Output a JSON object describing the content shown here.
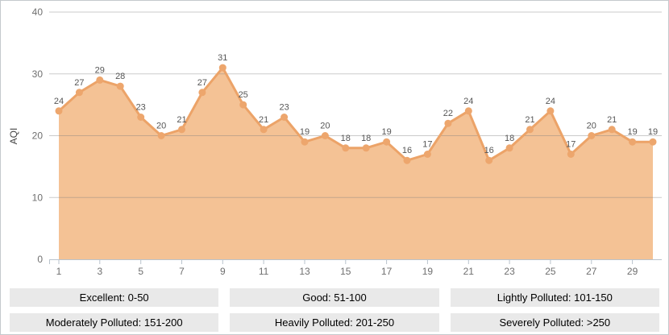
{
  "chart_data": {
    "type": "area",
    "title": "",
    "xlabel": "",
    "ylabel": "AQI",
    "x": [
      1,
      2,
      3,
      4,
      5,
      6,
      7,
      8,
      9,
      10,
      11,
      12,
      13,
      14,
      15,
      16,
      17,
      18,
      19,
      20,
      21,
      22,
      23,
      24,
      25,
      26,
      27,
      28,
      29,
      30
    ],
    "values": [
      24,
      27,
      29,
      28,
      23,
      20,
      21,
      27,
      31,
      25,
      21,
      23,
      19,
      20,
      18,
      18,
      19,
      16,
      17,
      22,
      24,
      16,
      18,
      21,
      24,
      17,
      20,
      21,
      19,
      19
    ],
    "ylim": [
      0,
      40
    ],
    "ytick_step": 10,
    "yticks": [
      0,
      10,
      20,
      30,
      40
    ],
    "xtick_labels": [
      1,
      3,
      5,
      7,
      9,
      11,
      13,
      15,
      17,
      19,
      21,
      23,
      25,
      27,
      29
    ],
    "grid": "horizontal",
    "legend_position": "bottom",
    "point_labels_shown": true,
    "colors": {
      "area_fill": "#f4c295",
      "line": "#eca368",
      "marker": "#eda66d",
      "value_label": "#565656",
      "axis_label": "#6f6f6f",
      "gridline": "#c9c9c9",
      "axis_line": "#b9c3cc",
      "ylabel_color": "#444444",
      "legend_bg": "#e9e9e9",
      "legend_text": "#000000",
      "frame_border": "#c4c9cd"
    }
  },
  "legend": {
    "items": [
      "Excellent: 0-50",
      "Good: 51-100",
      "Lightly Polluted: 101-150",
      "Moderately Polluted: 151-200",
      "Heavily Polluted: 201-250",
      "Severely Polluted: >250"
    ]
  }
}
